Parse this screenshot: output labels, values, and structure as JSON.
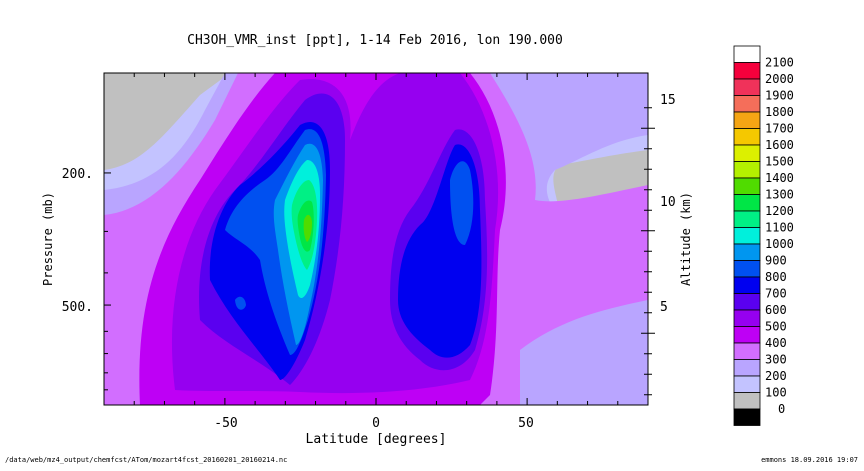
{
  "chart_data": {
    "type": "heatmap",
    "title": "CH3OH_VMR_inst [ppt], 1-14 Feb 2016, lon 190.000",
    "xlabel": "Latitude [degrees]",
    "ylabel": "Pressure (mb)",
    "y2label": "Altitude (km)",
    "xlim": [
      -90,
      90
    ],
    "ylim_pressure_mb": [
      1000,
      100
    ],
    "x_ticks": [
      -50,
      0,
      50
    ],
    "y_ticks": [
      "200.",
      "500."
    ],
    "y2_ticks": [
      "5",
      "10",
      "15"
    ],
    "colorbar": {
      "levels": [
        "2100",
        "2000",
        "1900",
        "1800",
        "1700",
        "1600",
        "1500",
        "1400",
        "1300",
        "1200",
        "1100",
        "1000",
        "900",
        "800",
        "700",
        "600",
        "500",
        "400",
        "300",
        "200",
        "100",
        "0"
      ],
      "colors": [
        "#ffffff",
        "#f5003c",
        "#f0325a",
        "#f56e5a",
        "#f5a514",
        "#f5c800",
        "#dcf000",
        "#b4f000",
        "#50dc00",
        "#00e646",
        "#00f085",
        "#00f0dc",
        "#0096f0",
        "#0050f0",
        "#0000f0",
        "#5a00f0",
        "#9600f0",
        "#be00f5",
        "#d26eff",
        "#b9a5ff",
        "#c3c3ff",
        "#c0c0c0",
        "#000000"
      ]
    },
    "grid": false
  },
  "footer": {
    "path": "/data/web/mz4_output/chemfcst/ATom/mozart4fcst_20160201_20160214.nc",
    "stamp": "emmons 18.09.2016 19:07"
  }
}
